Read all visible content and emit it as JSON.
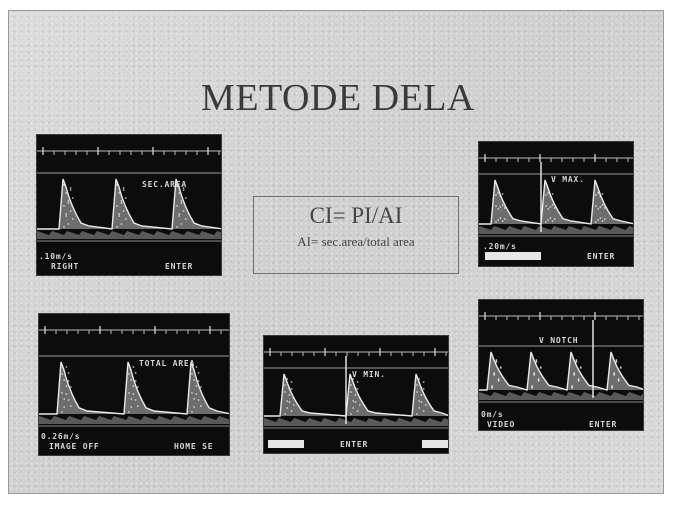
{
  "slide": {
    "title": "METODE DELA",
    "formula": "CI= PI/AI",
    "note": "AI= sec.area/total area"
  },
  "panels": {
    "top_left": {
      "label": "SEC.AREA",
      "scale": ".10m/s",
      "footer_left": "RIGHT",
      "footer_right": "ENTER"
    },
    "top_right": {
      "label": "V MAX.",
      "scale": ".20m/s",
      "footer_right": "ENTER"
    },
    "bottom_left": {
      "label": "TOTAL AREA",
      "scale": "0.26m/s",
      "footer_left": "IMAGE OFF",
      "footer_right": "HOME SE"
    },
    "bottom_center": {
      "label": "V MIN.",
      "footer_center": "ENTER"
    },
    "bottom_right": {
      "label": "V NOTCH",
      "scale": "0m/s",
      "footer_left": "VIDEO",
      "footer_right": "ENTER"
    }
  }
}
